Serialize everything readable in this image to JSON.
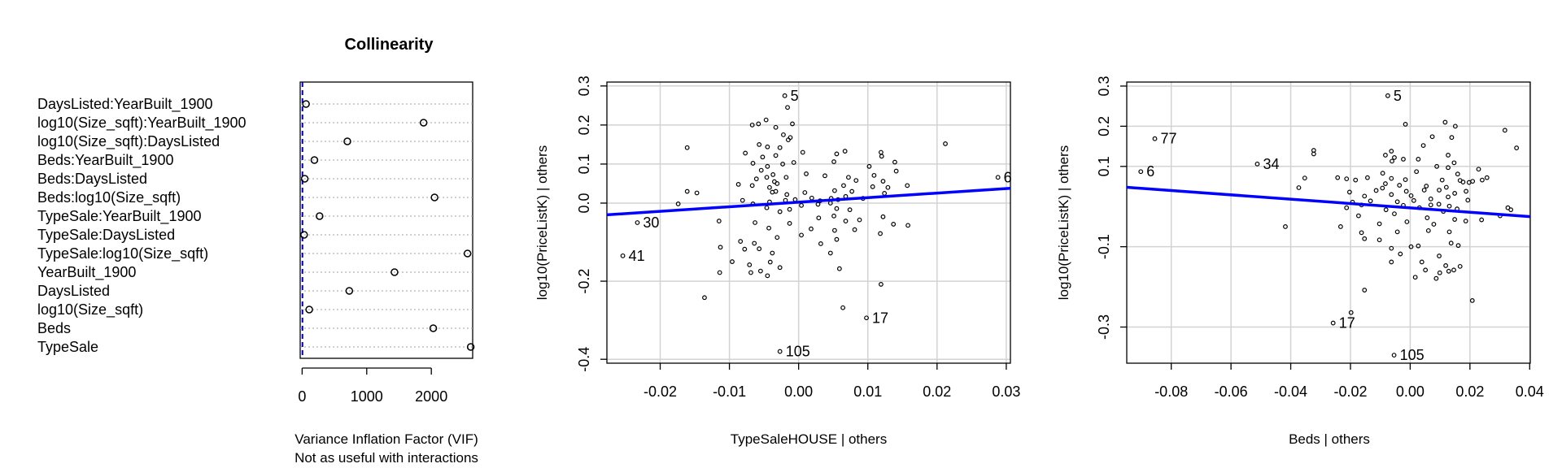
{
  "chart_data": [
    {
      "type": "dotchart",
      "title": "Collinearity",
      "xlabel": "Variance Inflation Factor (VIF)",
      "xlabel2": "Not as useful with interactions",
      "xticks": [
        0,
        1000,
        2000
      ],
      "xlim": [
        -30,
        2640
      ],
      "reference_line": 5,
      "colors": {
        "points": "#000000",
        "reference_line": "#0000cc",
        "guides": "#a0a0a0"
      },
      "categories": [
        "DaysListed:YearBuilt_1900",
        "log10(Size_sqft):YearBuilt_1900",
        "log10(Size_sqft):DaysListed",
        "Beds:YearBuilt_1900",
        "Beds:DaysListed",
        "Beds:log10(Size_sqft)",
        "TypeSale:YearBuilt_1900",
        "TypeSale:DaysListed",
        "TypeSale:log10(Size_sqft)",
        "YearBuilt_1900",
        "DaysListed",
        "log10(Size_sqft)",
        "Beds",
        "TypeSale"
      ],
      "values": [
        60,
        1880,
        700,
        190,
        40,
        2050,
        270,
        30,
        2560,
        1430,
        730,
        110,
        2030,
        2610
      ]
    },
    {
      "type": "scatter",
      "xlabel": "TypeSaleHOUSE | others",
      "ylabel": "log10(PriceListK)  | others",
      "xticks": [
        -0.02,
        -0.01,
        0.0,
        0.01,
        0.02,
        0.03
      ],
      "xtick_labels": [
        "-0.02",
        "-0.01",
        "0.00",
        "0.01",
        "0.02",
        "0.03"
      ],
      "yticks": [
        -0.4,
        -0.2,
        0.0,
        0.1,
        0.2,
        0.3
      ],
      "ytick_labels": [
        "-0.4",
        "-0.2",
        "0.0",
        "0.1",
        "0.2",
        "0.3"
      ],
      "xlim": [
        -0.0277,
        0.0306
      ],
      "ylim": [
        -0.41,
        0.31
      ],
      "grid": true,
      "fit_line": {
        "x": [
          -0.0277,
          0.0306
        ],
        "y": [
          -0.03,
          0.038
        ],
        "color": "#0000ff"
      },
      "labeled_points": [
        {
          "label": "5",
          "x": -0.002,
          "y": 0.275
        },
        {
          "label": "6",
          "x": 0.0288,
          "y": 0.066
        },
        {
          "label": "30",
          "x": -0.0233,
          "y": -0.05
        },
        {
          "label": "41",
          "x": -0.0254,
          "y": -0.135
        },
        {
          "label": "17",
          "x": 0.0098,
          "y": -0.294
        },
        {
          "label": "105",
          "x": -0.0027,
          "y": -0.38
        }
      ],
      "points": [
        {
          "x": -0.0016,
          "y": 0.245
        },
        {
          "x": -0.0067,
          "y": 0.2
        },
        {
          "x": -0.0058,
          "y": 0.203
        },
        {
          "x": -0.0047,
          "y": 0.213
        },
        {
          "x": -0.0033,
          "y": 0.194
        },
        {
          "x": -0.0009,
          "y": 0.203
        },
        {
          "x": -0.0022,
          "y": 0.175
        },
        {
          "x": -0.0012,
          "y": 0.168
        },
        {
          "x": -0.0015,
          "y": 0.162
        },
        {
          "x": -0.0057,
          "y": 0.15
        },
        {
          "x": -0.0045,
          "y": 0.144
        },
        {
          "x": -0.0027,
          "y": 0.142
        },
        {
          "x": -0.0077,
          "y": 0.128
        },
        {
          "x": -0.0052,
          "y": 0.118
        },
        {
          "x": -0.0033,
          "y": 0.122
        },
        {
          "x": 0.0006,
          "y": 0.13
        },
        {
          "x": 0.0055,
          "y": 0.126
        },
        {
          "x": 0.0067,
          "y": 0.133
        },
        {
          "x": 0.0119,
          "y": 0.13
        },
        {
          "x": 0.0212,
          "y": 0.152
        },
        {
          "x": -0.0066,
          "y": 0.102
        },
        {
          "x": -0.0045,
          "y": 0.094
        },
        {
          "x": -0.0023,
          "y": 0.1
        },
        {
          "x": -0.0007,
          "y": 0.104
        },
        {
          "x": 0.0051,
          "y": 0.106
        },
        {
          "x": 0.012,
          "y": 0.12
        },
        {
          "x": 0.0139,
          "y": 0.105
        },
        {
          "x": 0.0102,
          "y": 0.094
        },
        {
          "x": 0.0141,
          "y": 0.082
        },
        {
          "x": 0.0109,
          "y": 0.071
        },
        {
          "x": -0.0054,
          "y": 0.084
        },
        {
          "x": -0.0037,
          "y": 0.073
        },
        {
          "x": -0.0061,
          "y": 0.062
        },
        {
          "x": -0.0046,
          "y": 0.066
        },
        {
          "x": -0.0035,
          "y": 0.055
        },
        {
          "x": -0.0031,
          "y": 0.05
        },
        {
          "x": -0.0018,
          "y": 0.066
        },
        {
          "x": 0.0011,
          "y": 0.075
        },
        {
          "x": 0.0038,
          "y": 0.07
        },
        {
          "x": 0.0072,
          "y": 0.066
        },
        {
          "x": 0.0083,
          "y": 0.058
        },
        {
          "x": 0.0122,
          "y": 0.056
        },
        {
          "x": 0.0129,
          "y": 0.04
        },
        {
          "x": 0.0157,
          "y": 0.045
        },
        {
          "x": -0.0161,
          "y": 0.142
        },
        {
          "x": -0.0161,
          "y": 0.03
        },
        {
          "x": -0.0147,
          "y": 0.026
        },
        {
          "x": -0.0087,
          "y": 0.048
        },
        {
          "x": -0.0067,
          "y": 0.045
        },
        {
          "x": -0.0042,
          "y": 0.04
        },
        {
          "x": -0.0038,
          "y": 0.028
        },
        {
          "x": -0.0033,
          "y": 0.03
        },
        {
          "x": -0.0017,
          "y": 0.022
        },
        {
          "x": 0.0009,
          "y": 0.027
        },
        {
          "x": 0.0052,
          "y": 0.032
        },
        {
          "x": 0.0065,
          "y": 0.045
        },
        {
          "x": 0.0077,
          "y": 0.03
        },
        {
          "x": 0.0107,
          "y": 0.042
        },
        {
          "x": 0.0124,
          "y": 0.025
        },
        {
          "x": -0.0174,
          "y": -0.002
        },
        {
          "x": -0.0081,
          "y": 0.007
        },
        {
          "x": -0.0066,
          "y": -0.002
        },
        {
          "x": -0.0042,
          "y": 0.003
        },
        {
          "x": -0.0019,
          "y": 0.007
        },
        {
          "x": -0.0005,
          "y": 0.009
        },
        {
          "x": 0.0019,
          "y": 0.013
        },
        {
          "x": 0.0031,
          "y": 0.006
        },
        {
          "x": 0.0047,
          "y": 0.012
        },
        {
          "x": 0.0057,
          "y": 0.009
        },
        {
          "x": 0.0068,
          "y": 0.017
        },
        {
          "x": 0.0093,
          "y": 0.012
        },
        {
          "x": -0.0046,
          "y": -0.012
        },
        {
          "x": -0.0027,
          "y": -0.022
        },
        {
          "x": -0.0013,
          "y": -0.016
        },
        {
          "x": 0.0004,
          "y": -0.006
        },
        {
          "x": 0.0028,
          "y": -0.003
        },
        {
          "x": 0.0046,
          "y": 0.0
        },
        {
          "x": 0.0055,
          "y": -0.014
        },
        {
          "x": 0.0074,
          "y": -0.017
        },
        {
          "x": 0.0029,
          "y": -0.038
        },
        {
          "x": 0.0051,
          "y": -0.033
        },
        {
          "x": 0.0068,
          "y": -0.046
        },
        {
          "x": 0.0088,
          "y": -0.043
        },
        {
          "x": 0.0122,
          "y": -0.035
        },
        {
          "x": 0.0137,
          "y": -0.054
        },
        {
          "x": -0.0115,
          "y": -0.046
        },
        {
          "x": -0.0063,
          "y": -0.05
        },
        {
          "x": -0.0043,
          "y": -0.064
        },
        {
          "x": -0.0013,
          "y": -0.052
        },
        {
          "x": 0.0018,
          "y": -0.066
        },
        {
          "x": 0.0052,
          "y": -0.07
        },
        {
          "x": 0.0081,
          "y": -0.068
        },
        {
          "x": 0.0118,
          "y": -0.078
        },
        {
          "x": 0.0158,
          "y": -0.057
        },
        {
          "x": -0.0084,
          "y": -0.098
        },
        {
          "x": -0.0064,
          "y": -0.103
        },
        {
          "x": -0.0031,
          "y": -0.088
        },
        {
          "x": 0.0004,
          "y": -0.082
        },
        {
          "x": 0.0032,
          "y": -0.104
        },
        {
          "x": 0.0055,
          "y": -0.093
        },
        {
          "x": -0.0113,
          "y": -0.113
        },
        {
          "x": -0.0078,
          "y": -0.118
        },
        {
          "x": -0.0057,
          "y": -0.117
        },
        {
          "x": -0.0038,
          "y": -0.128
        },
        {
          "x": 0.0046,
          "y": -0.128
        },
        {
          "x": -0.0096,
          "y": -0.15
        },
        {
          "x": -0.0071,
          "y": -0.158
        },
        {
          "x": -0.0041,
          "y": -0.151
        },
        {
          "x": -0.0027,
          "y": -0.165
        },
        {
          "x": 0.0059,
          "y": -0.168
        },
        {
          "x": -0.0114,
          "y": -0.178
        },
        {
          "x": -0.0069,
          "y": -0.178
        },
        {
          "x": -0.0055,
          "y": -0.174
        },
        {
          "x": -0.0045,
          "y": -0.186
        },
        {
          "x": -0.0136,
          "y": -0.242
        },
        {
          "x": 0.0119,
          "y": -0.208
        },
        {
          "x": 0.0064,
          "y": -0.268
        }
      ]
    },
    {
      "type": "scatter",
      "xlabel": "Beds | others",
      "ylabel": "log10(PriceListK)  | others",
      "xticks": [
        -0.08,
        -0.06,
        -0.04,
        -0.02,
        0.0,
        0.02,
        0.04
      ],
      "xtick_labels": [
        "-0.08",
        "-0.06",
        "-0.04",
        "-0.02",
        "0.00",
        "0.02",
        "0.04"
      ],
      "yticks": [
        -0.3,
        -0.1,
        0.1,
        0.2,
        0.3
      ],
      "ytick_labels": [
        "-0.3",
        "-0.1",
        "0.1",
        "0.2",
        "0.3"
      ],
      "xlim": [
        -0.0949,
        0.0402
      ],
      "ylim": [
        -0.39,
        0.31
      ],
      "grid": true,
      "fit_line": {
        "x": [
          -0.0949,
          0.0402
        ],
        "y": [
          0.048,
          -0.025
        ],
        "color": "#0000ff"
      },
      "labeled_points": [
        {
          "label": "5",
          "x": -0.0075,
          "y": 0.276
        },
        {
          "label": "77",
          "x": -0.0855,
          "y": 0.169
        },
        {
          "label": "6",
          "x": -0.0902,
          "y": 0.087
        },
        {
          "label": "34",
          "x": -0.0512,
          "y": 0.106
        },
        {
          "label": "17",
          "x": -0.0258,
          "y": -0.29
        },
        {
          "label": "105",
          "x": -0.0054,
          "y": -0.37
        }
      ],
      "points": [
        {
          "x": -0.0016,
          "y": 0.205
        },
        {
          "x": 0.0117,
          "y": 0.21
        },
        {
          "x": 0.0151,
          "y": 0.2
        },
        {
          "x": 0.0317,
          "y": 0.19
        },
        {
          "x": 0.0074,
          "y": 0.174
        },
        {
          "x": 0.0139,
          "y": 0.172
        },
        {
          "x": 0.0044,
          "y": 0.152
        },
        {
          "x": 0.0356,
          "y": 0.146
        },
        {
          "x": -0.0323,
          "y": 0.14
        },
        {
          "x": -0.0323,
          "y": 0.131
        },
        {
          "x": -0.0063,
          "y": 0.138
        },
        {
          "x": -0.0083,
          "y": 0.128
        },
        {
          "x": -0.0053,
          "y": 0.122
        },
        {
          "x": 0.0127,
          "y": 0.128
        },
        {
          "x": -0.0061,
          "y": 0.113
        },
        {
          "x": -0.0023,
          "y": 0.118
        },
        {
          "x": 0.0027,
          "y": 0.118
        },
        {
          "x": 0.0147,
          "y": 0.109
        },
        {
          "x": 0.0089,
          "y": 0.1
        },
        {
          "x": 0.0127,
          "y": 0.097
        },
        {
          "x": 0.0229,
          "y": 0.093
        },
        {
          "x": -0.0092,
          "y": 0.083
        },
        {
          "x": 0.0021,
          "y": 0.087
        },
        {
          "x": 0.0159,
          "y": 0.081
        },
        {
          "x": -0.0353,
          "y": 0.071
        },
        {
          "x": -0.0243,
          "y": 0.072
        },
        {
          "x": -0.0213,
          "y": 0.069
        },
        {
          "x": -0.0143,
          "y": 0.072
        },
        {
          "x": -0.0183,
          "y": 0.066
        },
        {
          "x": -0.0063,
          "y": 0.07
        },
        {
          "x": -0.0016,
          "y": 0.067
        },
        {
          "x": 0.0107,
          "y": 0.066
        },
        {
          "x": 0.0167,
          "y": 0.065
        },
        {
          "x": 0.0197,
          "y": 0.06
        },
        {
          "x": 0.0209,
          "y": 0.063
        },
        {
          "x": 0.0241,
          "y": 0.066
        },
        {
          "x": 0.0257,
          "y": 0.072
        },
        {
          "x": -0.0373,
          "y": 0.047
        },
        {
          "x": -0.0083,
          "y": 0.057
        },
        {
          "x": -0.0036,
          "y": 0.053
        },
        {
          "x": 0.0054,
          "y": 0.051
        },
        {
          "x": 0.0121,
          "y": 0.048
        },
        {
          "x": 0.0177,
          "y": 0.061
        },
        {
          "x": -0.0203,
          "y": 0.036
        },
        {
          "x": -0.0114,
          "y": 0.04
        },
        {
          "x": -0.0093,
          "y": 0.046
        },
        {
          "x": -0.0013,
          "y": 0.038
        },
        {
          "x": 0.0047,
          "y": 0.041
        },
        {
          "x": 0.0097,
          "y": 0.041
        },
        {
          "x": 0.0187,
          "y": 0.038
        },
        {
          "x": -0.0153,
          "y": 0.026
        },
        {
          "x": -0.0063,
          "y": 0.03
        },
        {
          "x": 0.0003,
          "y": 0.027
        },
        {
          "x": 0.0127,
          "y": 0.024
        },
        {
          "x": 0.0149,
          "y": 0.033
        },
        {
          "x": -0.0193,
          "y": 0.011
        },
        {
          "x": -0.0133,
          "y": 0.014
        },
        {
          "x": -0.0043,
          "y": 0.012
        },
        {
          "x": 0.0012,
          "y": 0.015
        },
        {
          "x": 0.0069,
          "y": 0.019
        },
        {
          "x": 0.0193,
          "y": 0.016
        },
        {
          "x": -0.0163,
          "y": 0.004
        },
        {
          "x": -0.0023,
          "y": 0.003
        },
        {
          "x": 0.0069,
          "y": 0.004
        },
        {
          "x": 0.0096,
          "y": 0.006
        },
        {
          "x": 0.0131,
          "y": 0.001
        },
        {
          "x": 0.0327,
          "y": -0.003
        },
        {
          "x": -0.0213,
          "y": -0.003
        },
        {
          "x": -0.0081,
          "y": -0.008
        },
        {
          "x": 0.0031,
          "y": -0.003
        },
        {
          "x": 0.0111,
          "y": -0.012
        },
        {
          "x": 0.0157,
          "y": -0.006
        },
        {
          "x": 0.0337,
          "y": -0.008
        },
        {
          "x": -0.0173,
          "y": -0.023
        },
        {
          "x": -0.0053,
          "y": -0.018
        },
        {
          "x": 0.0057,
          "y": -0.028
        },
        {
          "x": 0.0149,
          "y": -0.032
        },
        {
          "x": 0.0301,
          "y": -0.023
        },
        {
          "x": -0.0418,
          "y": -0.05
        },
        {
          "x": -0.0233,
          "y": -0.05
        },
        {
          "x": -0.0103,
          "y": -0.043
        },
        {
          "x": -0.0011,
          "y": -0.038
        },
        {
          "x": 0.0079,
          "y": -0.044
        },
        {
          "x": 0.0186,
          "y": -0.036
        },
        {
          "x": 0.0239,
          "y": -0.033
        },
        {
          "x": -0.0163,
          "y": -0.065
        },
        {
          "x": -0.0043,
          "y": -0.063
        },
        {
          "x": 0.0061,
          "y": -0.06
        },
        {
          "x": 0.0131,
          "y": -0.063
        },
        {
          "x": -0.0153,
          "y": -0.08
        },
        {
          "x": -0.0103,
          "y": -0.083
        },
        {
          "x": 0.0003,
          "y": -0.1
        },
        {
          "x": 0.0027,
          "y": -0.098
        },
        {
          "x": 0.0137,
          "y": -0.091
        },
        {
          "x": 0.0161,
          "y": -0.097
        },
        {
          "x": -0.0063,
          "y": -0.104
        },
        {
          "x": -0.0033,
          "y": -0.118
        },
        {
          "x": 0.0097,
          "y": -0.123
        },
        {
          "x": -0.0063,
          "y": -0.138
        },
        {
          "x": 0.0039,
          "y": -0.138
        },
        {
          "x": 0.0119,
          "y": -0.147
        },
        {
          "x": 0.0167,
          "y": -0.149
        },
        {
          "x": 0.0051,
          "y": -0.158
        },
        {
          "x": 0.0099,
          "y": -0.165
        },
        {
          "x": 0.0129,
          "y": -0.161
        },
        {
          "x": 0.0146,
          "y": -0.158
        },
        {
          "x": 0.0017,
          "y": -0.176
        },
        {
          "x": 0.0087,
          "y": -0.179
        },
        {
          "x": -0.0153,
          "y": -0.208
        },
        {
          "x": 0.0208,
          "y": -0.234
        },
        {
          "x": -0.0198,
          "y": -0.264
        }
      ]
    }
  ]
}
